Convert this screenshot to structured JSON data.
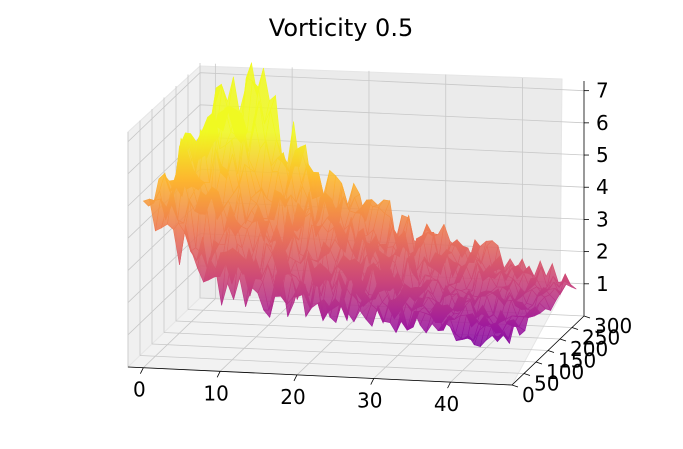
{
  "chart_data": {
    "type": "surface3d",
    "title": "Vorticity 0.5",
    "colormap": "plasma",
    "colormap_stops": [
      "#0d0887",
      "#5c01a6",
      "#9c179e",
      "#cc4778",
      "#ed7953",
      "#fdb42f",
      "#f0f921"
    ],
    "x_ticks": [
      "0",
      "10",
      "20",
      "30",
      "40"
    ],
    "y_ticks": [
      "0",
      "50",
      "100",
      "150",
      "200",
      "250",
      "300"
    ],
    "z_ticks": [
      "1",
      "2",
      "3",
      "4",
      "5",
      "6",
      "7"
    ],
    "xlim": [
      -2,
      48
    ],
    "ylim": [
      0,
      300
    ],
    "zlim": [
      0,
      7.3
    ],
    "grid": true,
    "surface_profile": {
      "x": [
        0,
        2,
        4,
        6,
        8,
        10,
        15,
        20,
        25,
        30,
        35,
        40,
        45,
        47
      ],
      "z_low_y": [
        5.2,
        5.0,
        4.3,
        3.6,
        3.1,
        2.8,
        2.5,
        2.3,
        2.1,
        2.0,
        1.8,
        1.6,
        1.4,
        1.4
      ],
      "z_high_y": [
        5.6,
        6.2,
        6.4,
        6.5,
        5.7,
        4.9,
        3.7,
        2.9,
        2.5,
        2.2,
        1.9,
        1.6,
        1.2,
        1.1
      ]
    }
  }
}
